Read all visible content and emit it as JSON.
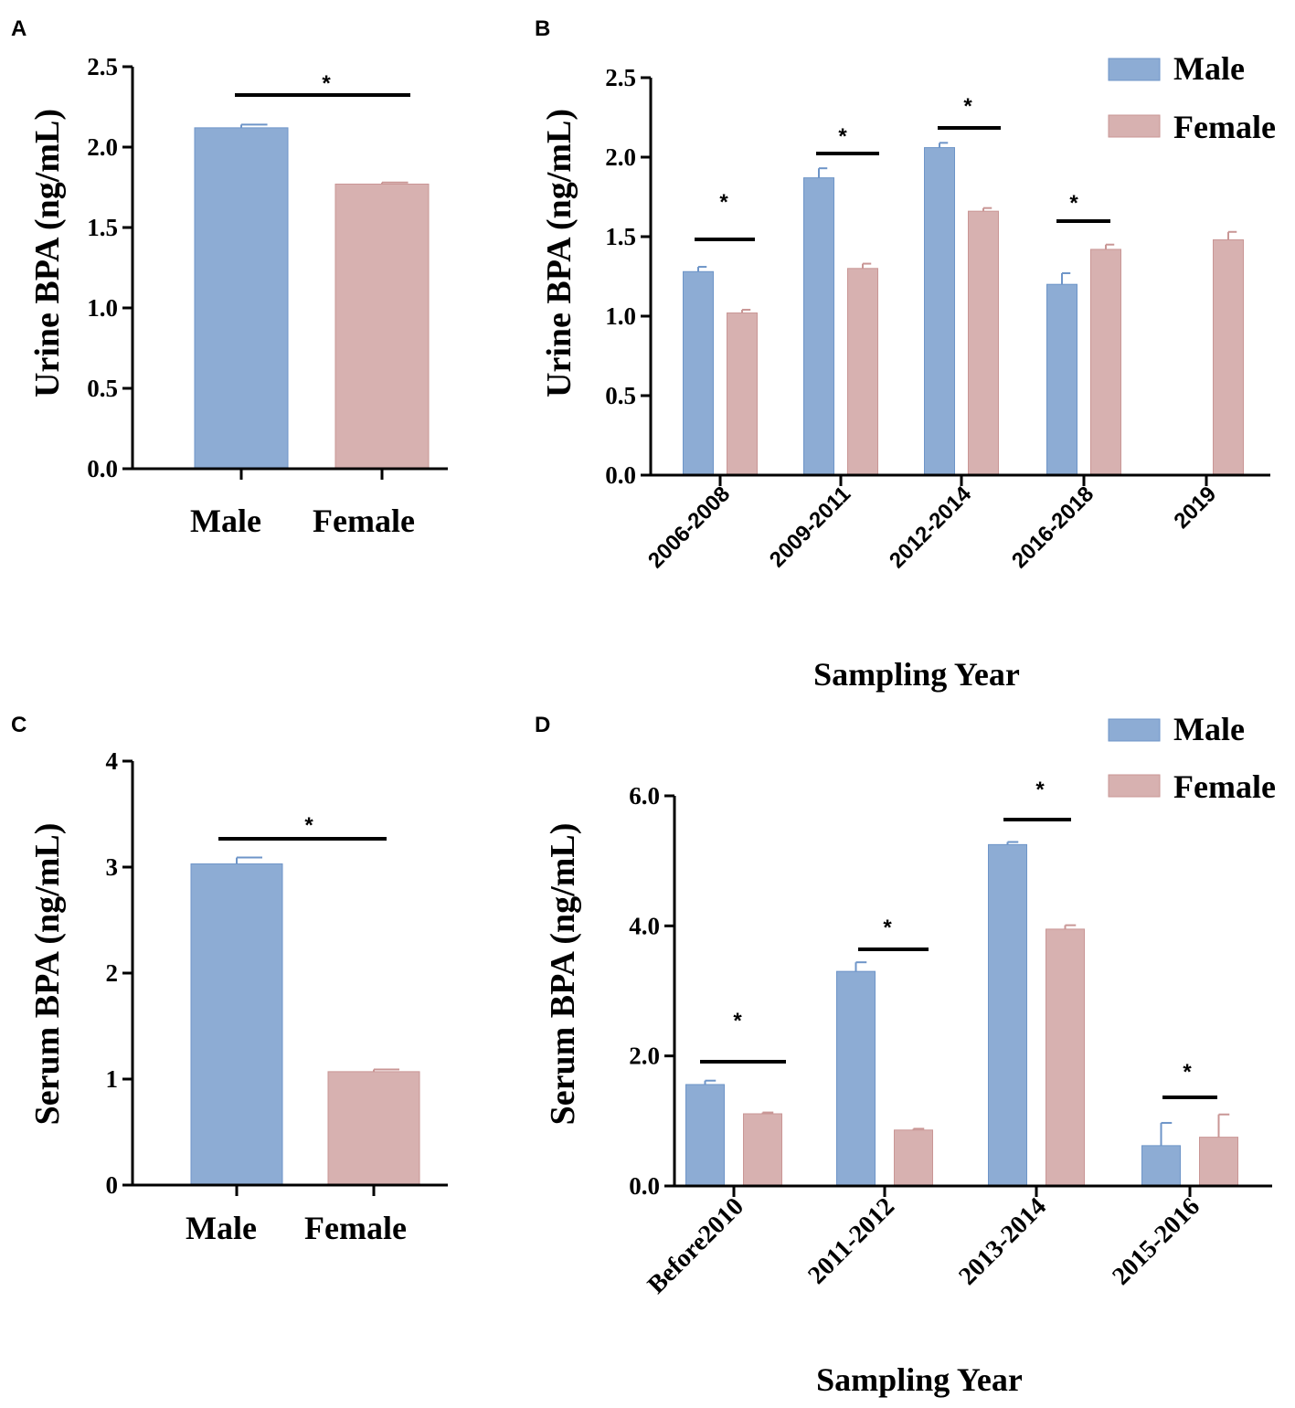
{
  "colors": {
    "male": "#8DACD4",
    "male_stroke": "#6E95C8",
    "female": "#D7B1B0",
    "female_stroke": "#C99695",
    "axis": "#000000"
  },
  "chart_data": [
    {
      "panel": "A",
      "type": "bar",
      "categories": [
        "Male",
        "Female"
      ],
      "values": [
        2.12,
        1.77
      ],
      "errors": [
        0.02,
        0.01
      ],
      "ylabel": "Urine BPA (ng/mL)",
      "xlabel": "",
      "ylim": [
        0,
        2.5
      ],
      "yticks": [
        "0.0",
        "0.5",
        "1.0",
        "1.5",
        "2.0",
        "2.5"
      ],
      "significance": [
        "*"
      ]
    },
    {
      "panel": "B",
      "type": "bar",
      "categories": [
        "2006-2008",
        "2009-2011",
        "2012-2014",
        "2016-2018",
        "2019"
      ],
      "series": [
        {
          "name": "Male",
          "values": [
            1.28,
            1.87,
            2.06,
            1.2,
            null
          ],
          "errors": [
            0.03,
            0.06,
            0.03,
            0.07,
            null
          ]
        },
        {
          "name": "Female",
          "values": [
            1.02,
            1.3,
            1.66,
            1.42,
            1.48
          ],
          "errors": [
            0.02,
            0.03,
            0.02,
            0.03,
            0.05
          ]
        }
      ],
      "ylabel": "Urine BPA (ng/mL)",
      "xlabel": "Sampling Year",
      "ylim": [
        0,
        2.5
      ],
      "yticks": [
        "0.0",
        "0.5",
        "1.0",
        "1.5",
        "2.0",
        "2.5"
      ],
      "significance": [
        "*",
        "*",
        "*",
        "*"
      ],
      "legend": [
        "Male",
        "Female"
      ],
      "legend_position": "top-right"
    },
    {
      "panel": "C",
      "type": "bar",
      "categories": [
        "Male",
        "Female"
      ],
      "values": [
        3.03,
        1.07
      ],
      "errors": [
        0.06,
        0.02
      ],
      "ylabel": "Serum BPA (ng/mL)",
      "xlabel": "",
      "ylim": [
        0,
        4
      ],
      "yticks": [
        "0",
        "1",
        "2",
        "3",
        "4"
      ],
      "significance": [
        "*"
      ]
    },
    {
      "panel": "D",
      "type": "bar",
      "categories": [
        "Before2010",
        "2011-2012",
        "2013-2014",
        "2015-2016"
      ],
      "series": [
        {
          "name": "Male",
          "values": [
            1.56,
            3.3,
            5.25,
            0.62
          ],
          "errors": [
            0.06,
            0.14,
            0.04,
            0.35
          ]
        },
        {
          "name": "Female",
          "values": [
            1.11,
            0.86,
            3.95,
            0.75
          ],
          "errors": [
            0.02,
            0.02,
            0.06,
            0.35
          ]
        }
      ],
      "ylabel": "Serum BPA (ng/mL)",
      "xlabel": "Sampling Year",
      "ylim": [
        0,
        6
      ],
      "yticks": [
        "0.0",
        "2.0",
        "4.0",
        "6.0"
      ],
      "significance": [
        "*",
        "*",
        "*",
        "*"
      ],
      "legend": [
        "Male",
        "Female"
      ],
      "legend_position": "top-right"
    }
  ]
}
